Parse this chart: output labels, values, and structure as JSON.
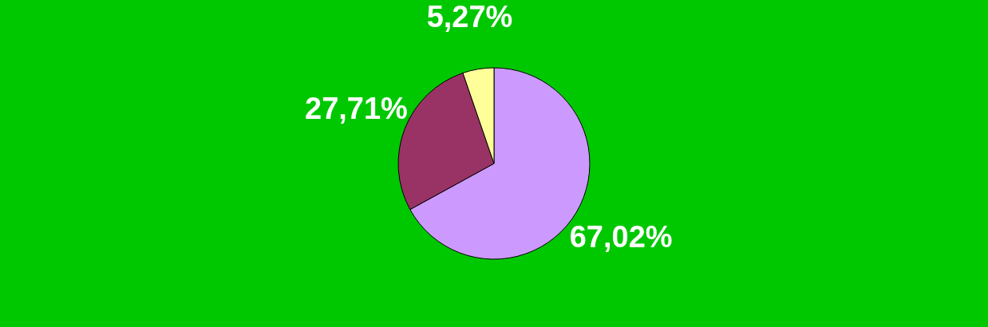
{
  "chart_data": {
    "type": "pie",
    "categories": [
      null,
      null,
      null
    ],
    "values": [
      67.02,
      27.71,
      5.27
    ],
    "colors": [
      "#cc99ff",
      "#993366",
      "#ffff99"
    ],
    "value_labels": [
      "67,02%",
      "27,71%",
      "5,27%"
    ],
    "legend": false
  }
}
